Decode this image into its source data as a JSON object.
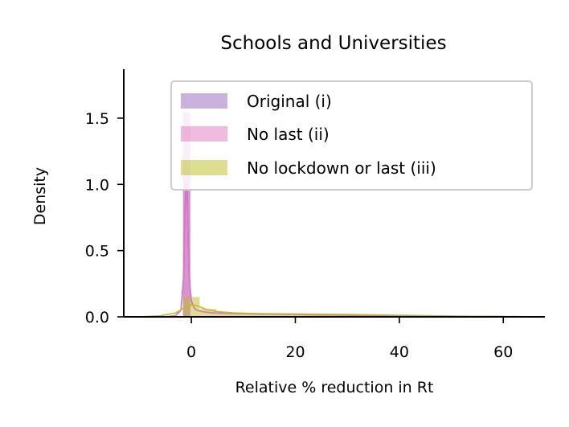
{
  "chart_data": {
    "type": "histogram-kde",
    "title": "Schools and Universities",
    "xlabel": "Relative % reduction in Rt",
    "ylabel": "Density",
    "xlim": [
      -13,
      68
    ],
    "ylim": [
      0,
      1.87
    ],
    "xticks": [
      0,
      20,
      40,
      60
    ],
    "yticks": [
      0.0,
      0.5,
      1.0,
      1.5
    ],
    "xtick_labels": [
      "0",
      "20",
      "40",
      "60"
    ],
    "ytick_labels": [
      "0.0",
      "0.5",
      "1.0",
      "1.5"
    ],
    "legend_position": "top-right",
    "series": [
      {
        "name": "Original (i)",
        "color": "#9467bd",
        "bins": [
          {
            "x0": -1.6,
            "x1": -0.2,
            "density": 1.55
          }
        ],
        "kde": {
          "x": [
            -5,
            -3,
            -2,
            -1.5,
            -1.2,
            -1.0,
            -0.8,
            -0.6,
            -0.4,
            0,
            0.5,
            1,
            2,
            4,
            8,
            15,
            30,
            45,
            60,
            64
          ],
          "y": [
            0.0,
            0.01,
            0.05,
            0.3,
            0.8,
            1.02,
            0.9,
            0.55,
            0.3,
            0.12,
            0.07,
            0.05,
            0.04,
            0.03,
            0.025,
            0.02,
            0.012,
            0.006,
            0.002,
            0.001
          ]
        }
      },
      {
        "name": "No last (ii)",
        "color": "#e377c2",
        "bins": [
          {
            "x0": -1.6,
            "x1": -0.2,
            "density": 1.53
          }
        ],
        "kde": {
          "x": [
            -5,
            -3,
            -2,
            -1.5,
            -1.2,
            -1.0,
            -0.8,
            -0.6,
            -0.4,
            0,
            0.5,
            1,
            2,
            4,
            8,
            15,
            30,
            45,
            60,
            64
          ],
          "y": [
            0.0,
            0.01,
            0.05,
            0.28,
            0.75,
            0.97,
            0.86,
            0.52,
            0.28,
            0.11,
            0.07,
            0.05,
            0.04,
            0.03,
            0.025,
            0.02,
            0.012,
            0.006,
            0.002,
            0.001
          ]
        }
      },
      {
        "name": "No lockdown or last (iii)",
        "color": "#bcbd22",
        "bins": [
          {
            "x0": -1.6,
            "x1": 1.6,
            "density": 0.15
          },
          {
            "x0": 1.6,
            "x1": 4.8,
            "density": 0.06
          },
          {
            "x0": 4.8,
            "x1": 8.0,
            "density": 0.035
          },
          {
            "x0": 8.0,
            "x1": 12.0,
            "density": 0.025
          },
          {
            "x0": 12.0,
            "x1": 20.0,
            "density": 0.02
          },
          {
            "x0": 20.0,
            "x1": 30.0,
            "density": 0.018
          },
          {
            "x0": 30.0,
            "x1": 40.0,
            "density": 0.012
          },
          {
            "x0": 40.0,
            "x1": 50.0,
            "density": 0.006
          },
          {
            "x0": 50.0,
            "x1": 60.0,
            "density": 0.003
          }
        ],
        "kde": {
          "x": [
            -10,
            -6,
            -3,
            -1,
            0,
            1,
            2,
            3,
            5,
            8,
            12,
            20,
            30,
            40,
            50,
            60,
            64
          ],
          "y": [
            0.0,
            0.008,
            0.03,
            0.075,
            0.09,
            0.085,
            0.07,
            0.055,
            0.04,
            0.03,
            0.025,
            0.022,
            0.018,
            0.012,
            0.006,
            0.002,
            0.001
          ]
        }
      }
    ]
  }
}
